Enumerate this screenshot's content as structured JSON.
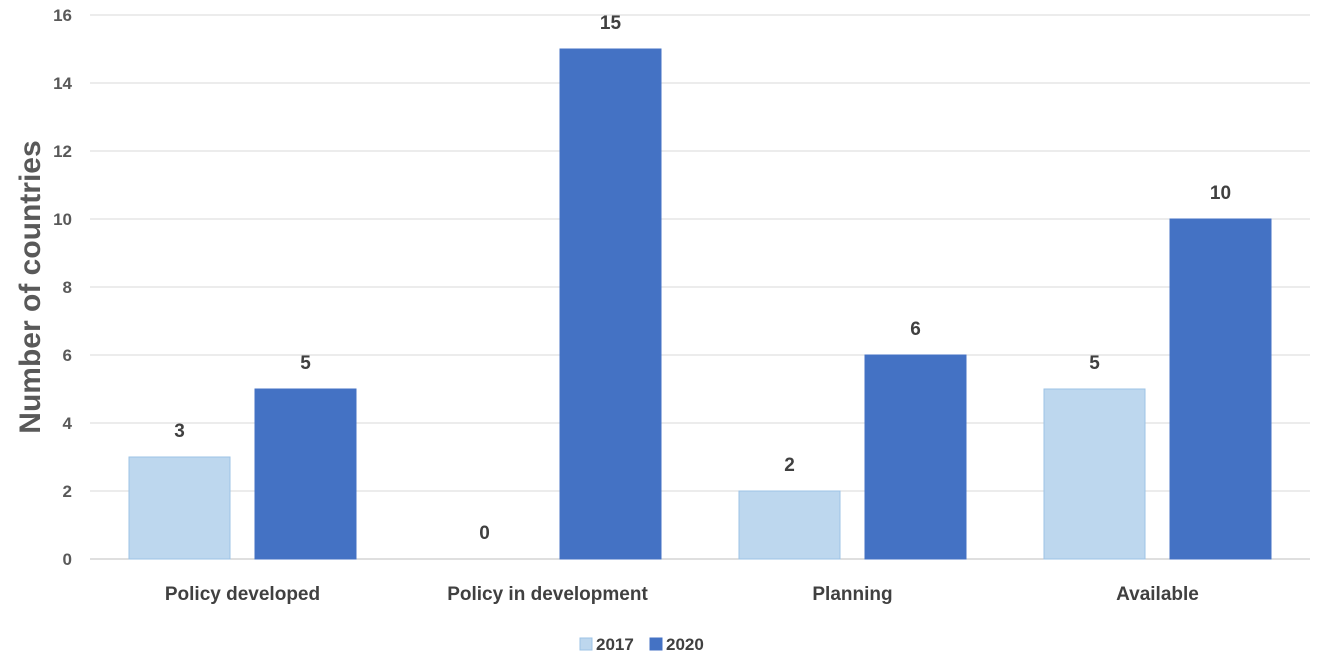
{
  "chart_data": {
    "type": "bar",
    "title": "",
    "xlabel": "",
    "ylabel": "Number of countries",
    "ylim": [
      0,
      16
    ],
    "yticks": [
      0,
      2,
      4,
      6,
      8,
      10,
      12,
      14,
      16
    ],
    "grid": true,
    "legend_position": "bottom",
    "categories": [
      "Policy developed",
      "Policy in development",
      "Planning",
      "Available"
    ],
    "series": [
      {
        "name": "2017",
        "values": [
          3,
          0,
          2,
          5
        ],
        "color": "#BDD7EE",
        "stroke": "#9DC3E6"
      },
      {
        "name": "2020",
        "values": [
          5,
          15,
          6,
          10
        ],
        "color": "#4472C4",
        "stroke": "#4472C4"
      }
    ]
  }
}
